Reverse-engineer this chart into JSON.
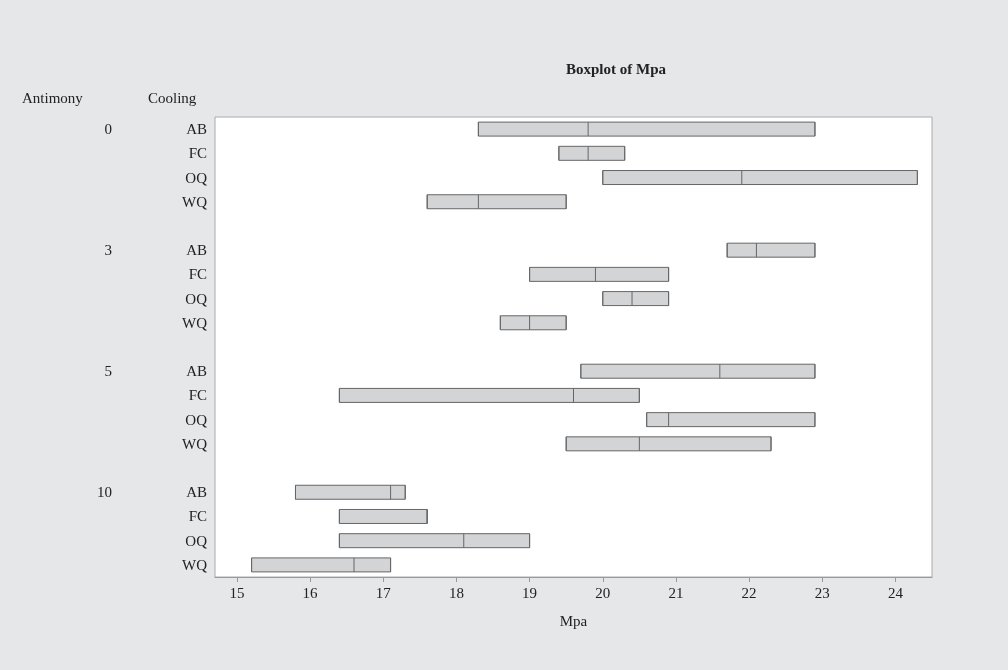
{
  "chart_data": {
    "type": "box",
    "orientation": "horizontal",
    "title": "Boxplot of Mpa",
    "xlabel": "Mpa",
    "ylabel": "Cooling",
    "annotations": [
      "Antimony",
      "0",
      "3",
      "5",
      "10"
    ],
    "categories": [
      "AB",
      "FC",
      "OQ",
      "WQ",
      "AB",
      "FC",
      "OQ",
      "WQ",
      "AB",
      "FC",
      "OQ",
      "WQ",
      "AB",
      "FC",
      "OQ",
      "WQ"
    ],
    "xlim": [
      14.7,
      24.5
    ],
    "xticks": [
      15,
      16,
      17,
      18,
      19,
      20,
      21,
      22,
      23,
      24
    ],
    "grid": false,
    "series": [
      {
        "color": "#d3d4d6",
        "boxes": [
          {
            "low": 18.3,
            "q1": 18.3,
            "median": 19.8,
            "q3": 22.9,
            "high": 22.9
          },
          {
            "low": 19.4,
            "q1": 19.4,
            "median": 19.8,
            "q3": 20.3,
            "high": 20.3
          },
          {
            "low": 20.0,
            "q1": 20.0,
            "median": 21.9,
            "q3": 24.3,
            "high": 24.3
          },
          {
            "low": 17.6,
            "q1": 17.6,
            "median": 18.3,
            "q3": 19.5,
            "high": 19.5
          },
          {
            "low": 21.7,
            "q1": 21.7,
            "median": 22.1,
            "q3": 22.9,
            "high": 22.9
          },
          {
            "low": 19.0,
            "q1": 19.0,
            "median": 19.9,
            "q3": 20.9,
            "high": 20.9
          },
          {
            "low": 20.0,
            "q1": 20.0,
            "median": 20.4,
            "q3": 20.9,
            "high": 20.9
          },
          {
            "low": 18.6,
            "q1": 18.6,
            "median": 19.0,
            "q3": 19.5,
            "high": 19.5
          },
          {
            "low": 19.7,
            "q1": 19.7,
            "median": 21.6,
            "q3": 22.9,
            "high": 22.9
          },
          {
            "low": 16.4,
            "q1": 16.4,
            "median": 19.6,
            "q3": 20.5,
            "high": 20.5
          },
          {
            "low": 20.6,
            "q1": 20.6,
            "median": 20.9,
            "q3": 22.9,
            "high": 22.9
          },
          {
            "low": 19.5,
            "q1": 19.5,
            "median": 20.5,
            "q3": 22.3,
            "high": 22.3
          },
          {
            "low": 15.8,
            "q1": 15.8,
            "median": 17.1,
            "q3": 17.3,
            "high": 17.3
          },
          {
            "low": 16.4,
            "q1": 16.4,
            "median": 17.6,
            "q3": 17.6,
            "high": 17.6
          },
          {
            "low": 16.4,
            "q1": 16.4,
            "median": 18.1,
            "q3": 19.0,
            "high": 19.0
          },
          {
            "low": 15.2,
            "q1": 15.2,
            "median": 16.6,
            "q3": 17.1,
            "high": 17.1
          }
        ]
      }
    ]
  }
}
